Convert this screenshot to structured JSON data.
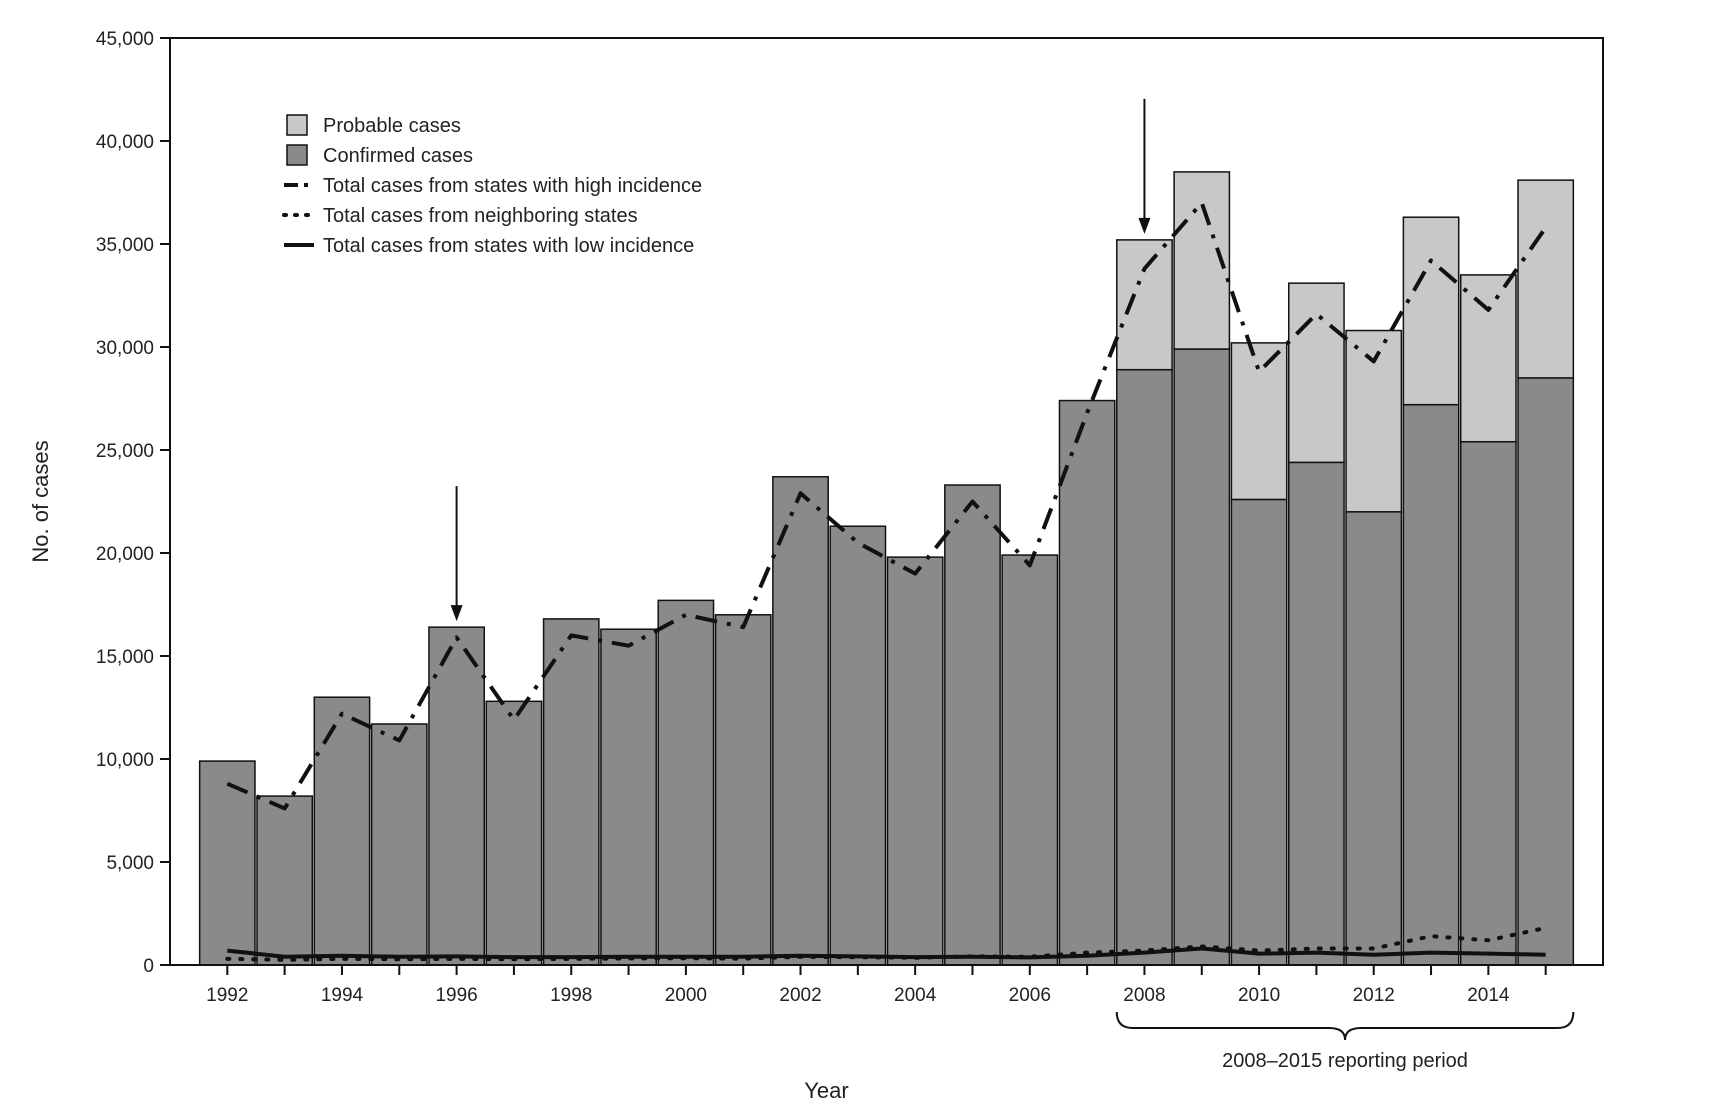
{
  "chart_data": {
    "type": "bar",
    "stacked": true,
    "xlabel": "Year",
    "ylabel": "No. of cases",
    "ylim": [
      0,
      45000
    ],
    "yticks": [
      0,
      5000,
      10000,
      15000,
      20000,
      25000,
      30000,
      35000,
      40000,
      45000
    ],
    "ytick_labels": [
      "0",
      "5,000",
      "10,000",
      "15,000",
      "20,000",
      "25,000",
      "30,000",
      "35,000",
      "40,000",
      "45,000"
    ],
    "categories": [
      "1992",
      "1993",
      "1994",
      "1995",
      "1996",
      "1997",
      "1998",
      "1999",
      "2000",
      "2001",
      "2002",
      "2003",
      "2004",
      "2005",
      "2006",
      "2007",
      "2008",
      "2009",
      "2010",
      "2011",
      "2012",
      "2013",
      "2014",
      "2015"
    ],
    "xtick_labels": [
      "1992",
      "",
      "1994",
      "",
      "1996",
      "",
      "1998",
      "",
      "2000",
      "",
      "2002",
      "",
      "2004",
      "",
      "2006",
      "",
      "2008",
      "",
      "2010",
      "",
      "2012",
      "",
      "2014",
      ""
    ],
    "series": [
      {
        "name": "Confirmed cases",
        "kind": "bar",
        "color": "#8a8a8a",
        "values": [
          9900,
          8200,
          13000,
          11700,
          16400,
          12800,
          16800,
          16300,
          17700,
          17000,
          23700,
          21300,
          19800,
          23300,
          19900,
          27400,
          28900,
          29900,
          22600,
          24400,
          22000,
          27200,
          25400,
          28500
        ]
      },
      {
        "name": "Probable cases",
        "kind": "bar",
        "color": "#c8c8c8",
        "values": [
          0,
          0,
          0,
          0,
          0,
          0,
          0,
          0,
          0,
          0,
          0,
          0,
          0,
          0,
          0,
          0,
          6300,
          8600,
          7600,
          8700,
          8800,
          9100,
          8100,
          9600
        ]
      },
      {
        "name": "Total cases from states with high incidence",
        "kind": "line",
        "dash": "dashdot",
        "values": [
          8800,
          7600,
          12200,
          10900,
          15900,
          11900,
          16000,
          15500,
          17000,
          16400,
          22900,
          20500,
          19000,
          22500,
          19400,
          26800,
          33800,
          37000,
          28800,
          31600,
          29300,
          34200,
          31800,
          35800
        ]
      },
      {
        "name": "Total cases from neighboring states",
        "kind": "line",
        "dash": "dotted",
        "values": [
          300,
          250,
          300,
          280,
          300,
          280,
          300,
          320,
          330,
          310,
          400,
          380,
          350,
          420,
          400,
          600,
          700,
          900,
          700,
          800,
          800,
          1400,
          1200,
          1800
        ]
      },
      {
        "name": "Total cases from states with low incidence",
        "kind": "line",
        "dash": "solid",
        "values": [
          700,
          400,
          450,
          400,
          420,
          380,
          380,
          400,
          400,
          400,
          450,
          420,
          380,
          400,
          370,
          450,
          600,
          800,
          550,
          600,
          500,
          600,
          550,
          500
        ]
      }
    ],
    "legend": {
      "position": "top-left",
      "entries": [
        "Probable cases",
        "Confirmed cases",
        "Total cases from states with high incidence",
        "Total cases from neighboring states",
        "Total cases from states with low incidence"
      ]
    },
    "annotations": [
      {
        "type": "arrow",
        "x": "1996"
      },
      {
        "type": "arrow",
        "x": "2008"
      },
      {
        "type": "brace",
        "from": "2008",
        "to": "2015",
        "label": "2008–2015 reporting period"
      }
    ],
    "grid": false
  }
}
